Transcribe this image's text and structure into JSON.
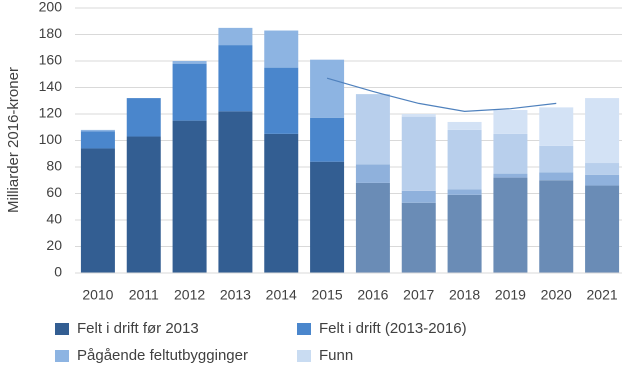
{
  "chart_data": {
    "type": "stacked_bar",
    "y_label": "Milliarder 2016-kroner",
    "categories": [
      "2010",
      "2011",
      "2012",
      "2013",
      "2014",
      "2015",
      "2016",
      "2017",
      "2018",
      "2019",
      "2020",
      "2021"
    ],
    "projected_from": "2016",
    "series": [
      {
        "name": "Felt i drift før 2013",
        "color": "#335e92",
        "projected_color": "#6a8cb6",
        "values": [
          94,
          103,
          115,
          122,
          105,
          84,
          68,
          53,
          59,
          72,
          70,
          66
        ]
      },
      {
        "name": "Felt i drift (2013-2016)",
        "color": "#4a86cc",
        "projected_color": "#8fb1dc",
        "values": [
          13,
          29,
          43,
          50,
          50,
          33,
          14,
          9,
          4,
          3,
          6,
          8
        ]
      },
      {
        "name": "Pågående feltutbygginger",
        "color": "#8db4e2",
        "projected_color": "#b8cfec",
        "values": [
          1,
          0,
          2,
          13,
          28,
          44,
          53,
          56,
          45,
          30,
          20,
          9
        ]
      },
      {
        "name": "Funn",
        "color": "#c9dcf2",
        "projected_color": "#d3e2f5",
        "values": [
          0,
          0,
          0,
          0,
          0,
          0,
          0,
          2,
          6,
          18,
          29,
          49
        ]
      }
    ],
    "line": {
      "color": "#4f81bd",
      "values": [
        null,
        null,
        null,
        null,
        null,
        147,
        137,
        128,
        122,
        124,
        128,
        null
      ]
    },
    "ylim": [
      0,
      200
    ],
    "yticks": [
      0,
      20,
      40,
      60,
      80,
      100,
      120,
      140,
      160,
      180,
      200
    ],
    "grid": true
  }
}
